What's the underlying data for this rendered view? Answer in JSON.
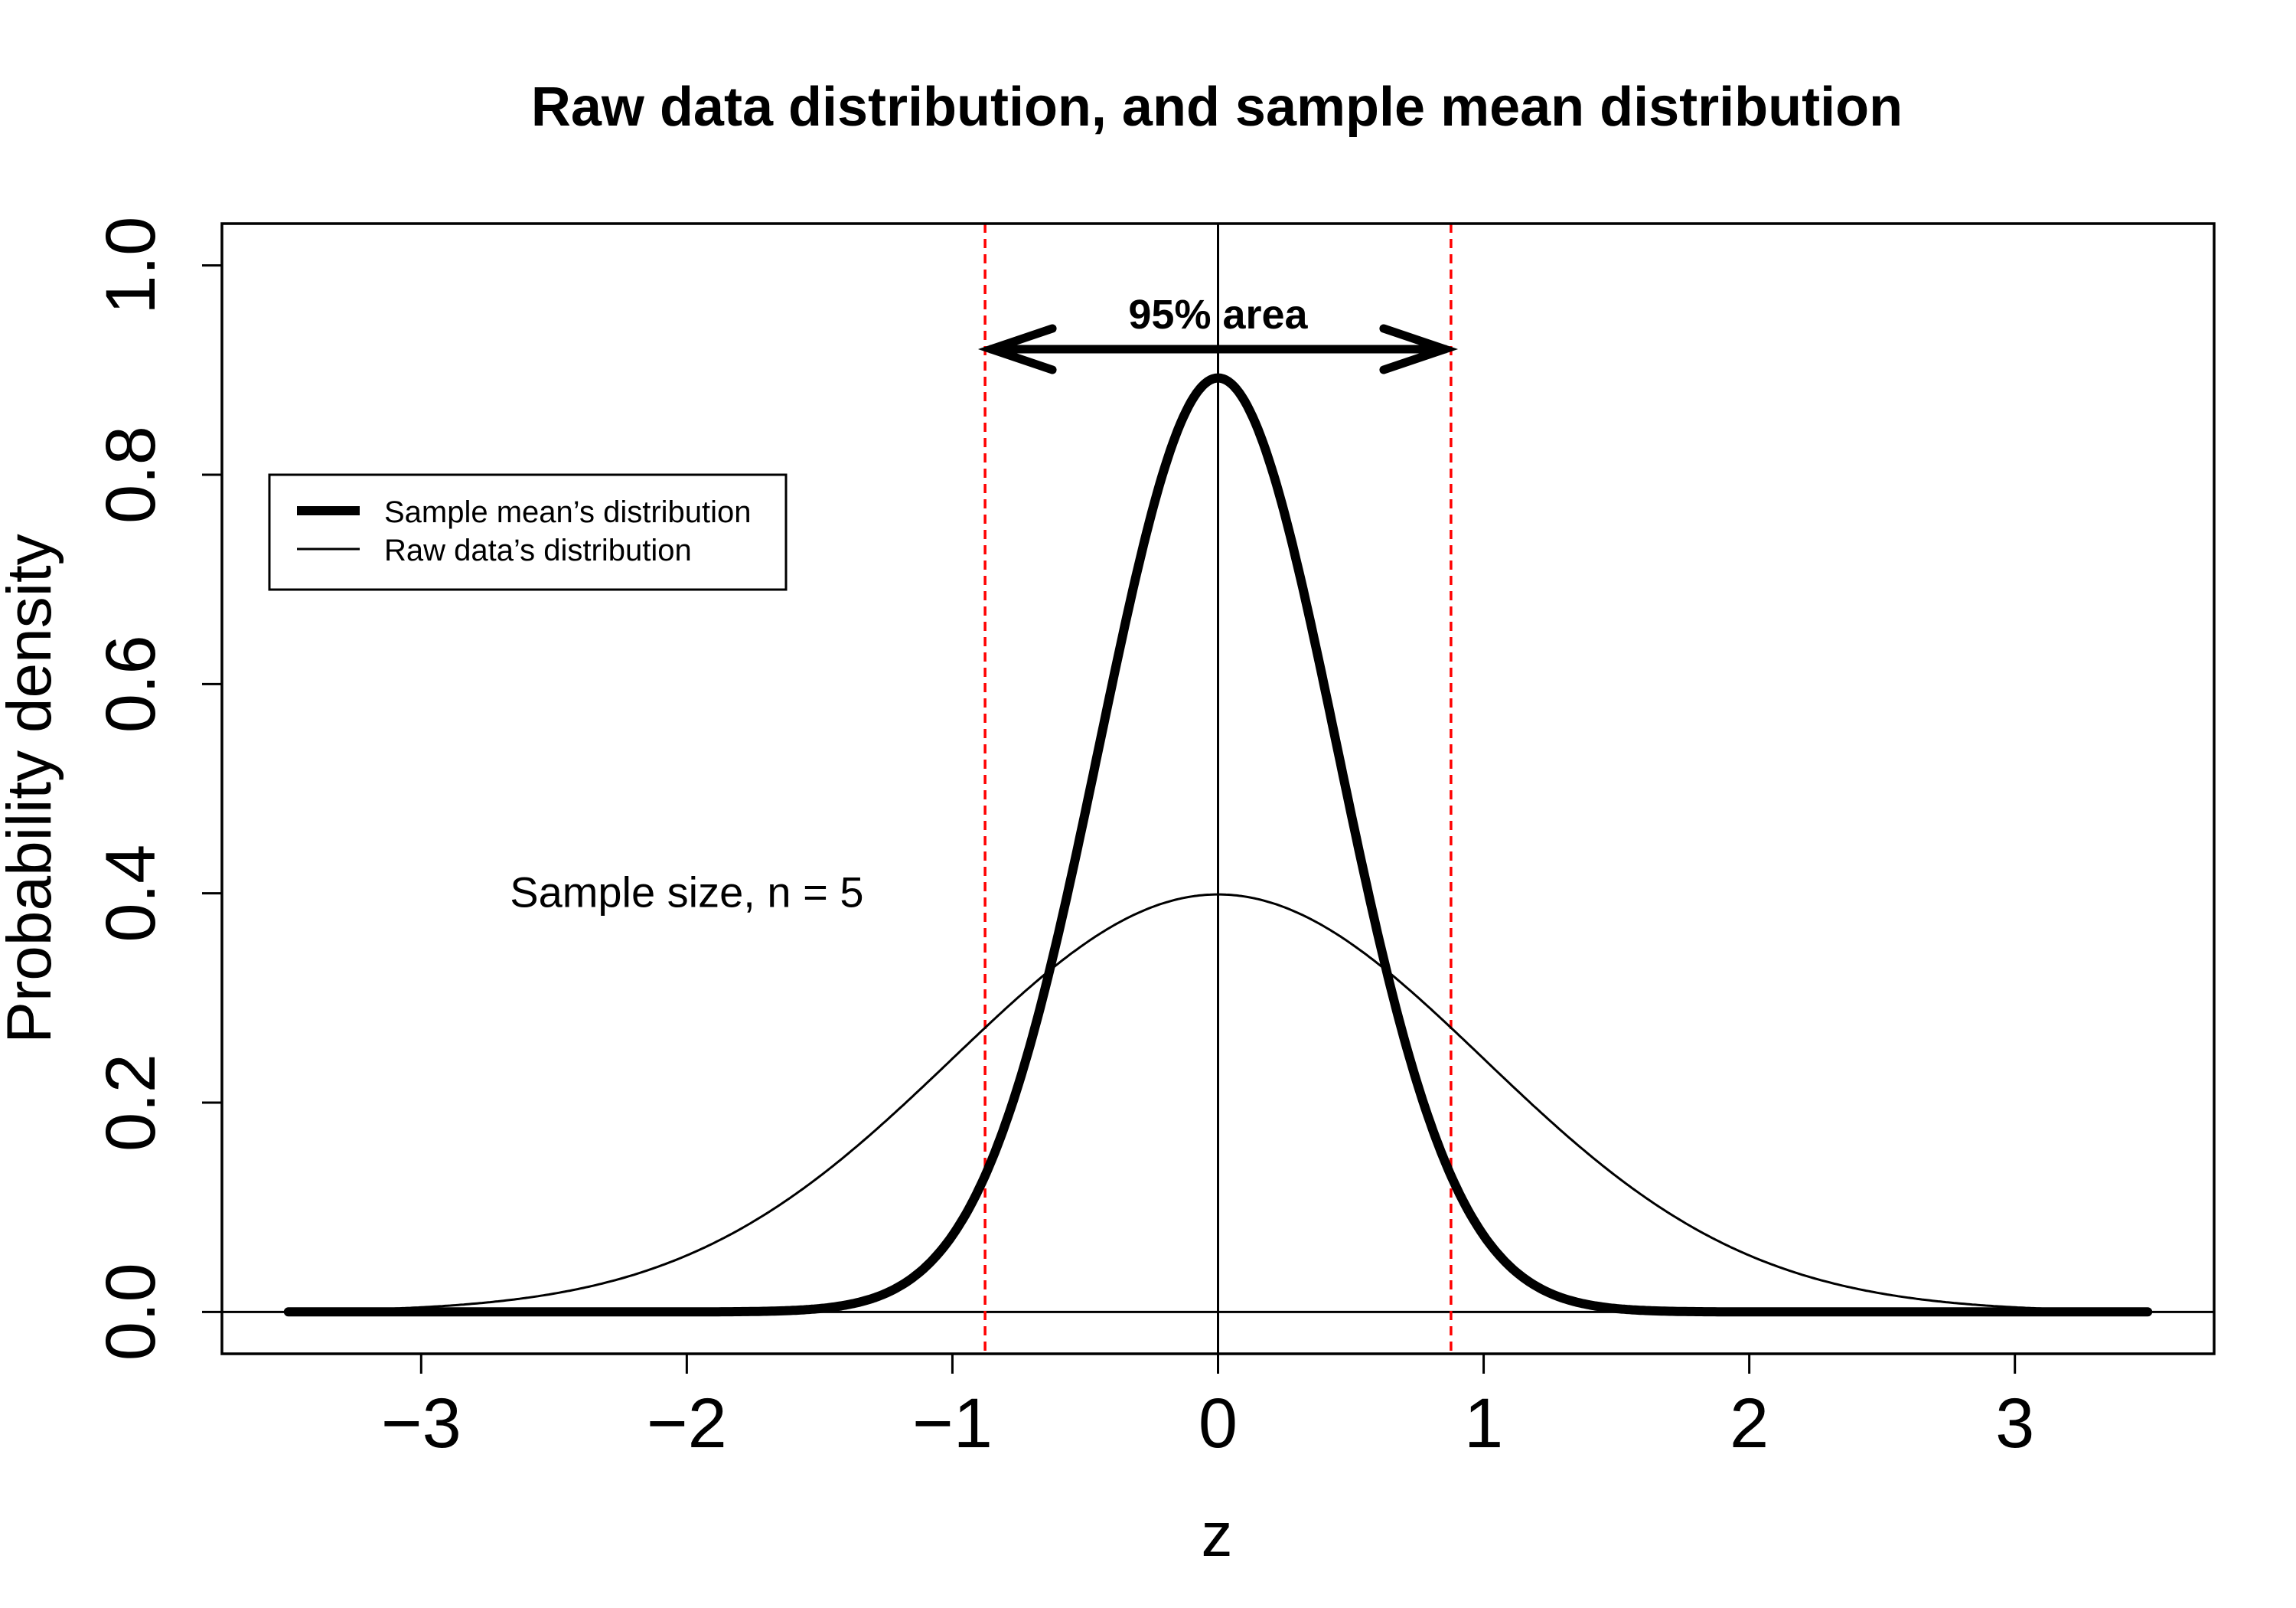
{
  "chart_data": {
    "type": "line",
    "title": "Raw data distribution, and sample mean distribution",
    "xlabel": "z",
    "ylabel": "Probability density",
    "xlim": [
      -3.75,
      3.75
    ],
    "ylim": [
      -0.04,
      1.04
    ],
    "xticks": [
      -3,
      -2,
      -1,
      0,
      1,
      2,
      3
    ],
    "xtick_labels": [
      "−3",
      "−2",
      "−1",
      "0",
      "1",
      "2",
      "3"
    ],
    "yticks": [
      0.0,
      0.2,
      0.4,
      0.6,
      0.8,
      1.0
    ],
    "ytick_labels": [
      "0.0",
      "0.2",
      "0.4",
      "0.6",
      "0.8",
      "1.0"
    ],
    "grid": false,
    "legend_position": "upper-left",
    "series": [
      {
        "name": "Sample mean’s distribution",
        "distribution": "normal",
        "mean": 0,
        "sd": 0.447,
        "x_range": [
          -3.5,
          3.5
        ],
        "peak": 0.892,
        "line_weight": "thick",
        "color": "#000000"
      },
      {
        "name": "Raw data’s distribution",
        "distribution": "normal",
        "mean": 0,
        "sd": 1,
        "x_range": [
          -3.5,
          3.5
        ],
        "peak": 0.399,
        "line_weight": "thin",
        "color": "#000000"
      }
    ],
    "reference_lines": {
      "vertical": [
        0
      ],
      "horizontal": [
        0
      ]
    },
    "interval": {
      "label": "95% area",
      "lower": -0.877,
      "upper": 0.877,
      "arrow_y": 0.92,
      "color": "#ff0000"
    },
    "annotation": {
      "text": "Sample size, n = 5",
      "x": -2.0,
      "y": 0.4
    }
  }
}
